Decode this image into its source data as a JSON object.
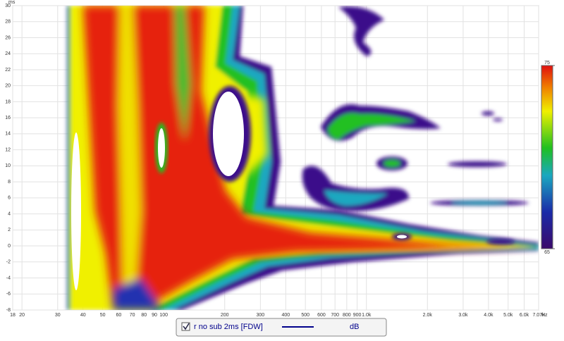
{
  "chart_data": {
    "type": "spectrogram",
    "y_unit": "ms",
    "x_unit": "Hz",
    "xlim": [
      18,
      7070
    ],
    "ylim": [
      -8,
      30
    ],
    "log_x": true,
    "grid": true,
    "yticks": [
      -8,
      -6,
      -4,
      -2,
      0,
      2,
      4,
      6,
      8,
      10,
      12,
      14,
      16,
      18,
      20,
      22,
      24,
      26,
      28,
      30
    ],
    "xticks": [
      18,
      20,
      30,
      40,
      50,
      60,
      70,
      80,
      90,
      100,
      200,
      300,
      400,
      500,
      600,
      700,
      800,
      900,
      {
        "value": 1000,
        "label": "1.0k"
      },
      {
        "value": 2000,
        "label": "2.0k"
      },
      {
        "value": 3000,
        "label": "3.0k"
      },
      {
        "value": 4000,
        "label": "4.0k"
      },
      {
        "value": 5000,
        "label": "5.0k"
      },
      {
        "value": 6000,
        "label": "6.0k"
      },
      {
        "value": 7070,
        "label": "7.07k"
      }
    ],
    "colorbar": {
      "lim": [
        65,
        75
      ],
      "ticks": [
        65,
        75
      ]
    },
    "series": [
      {
        "name": "r no sub 2ms [FDW]",
        "color": "#00008b",
        "unit": "dB",
        "checked": true
      }
    ]
  }
}
